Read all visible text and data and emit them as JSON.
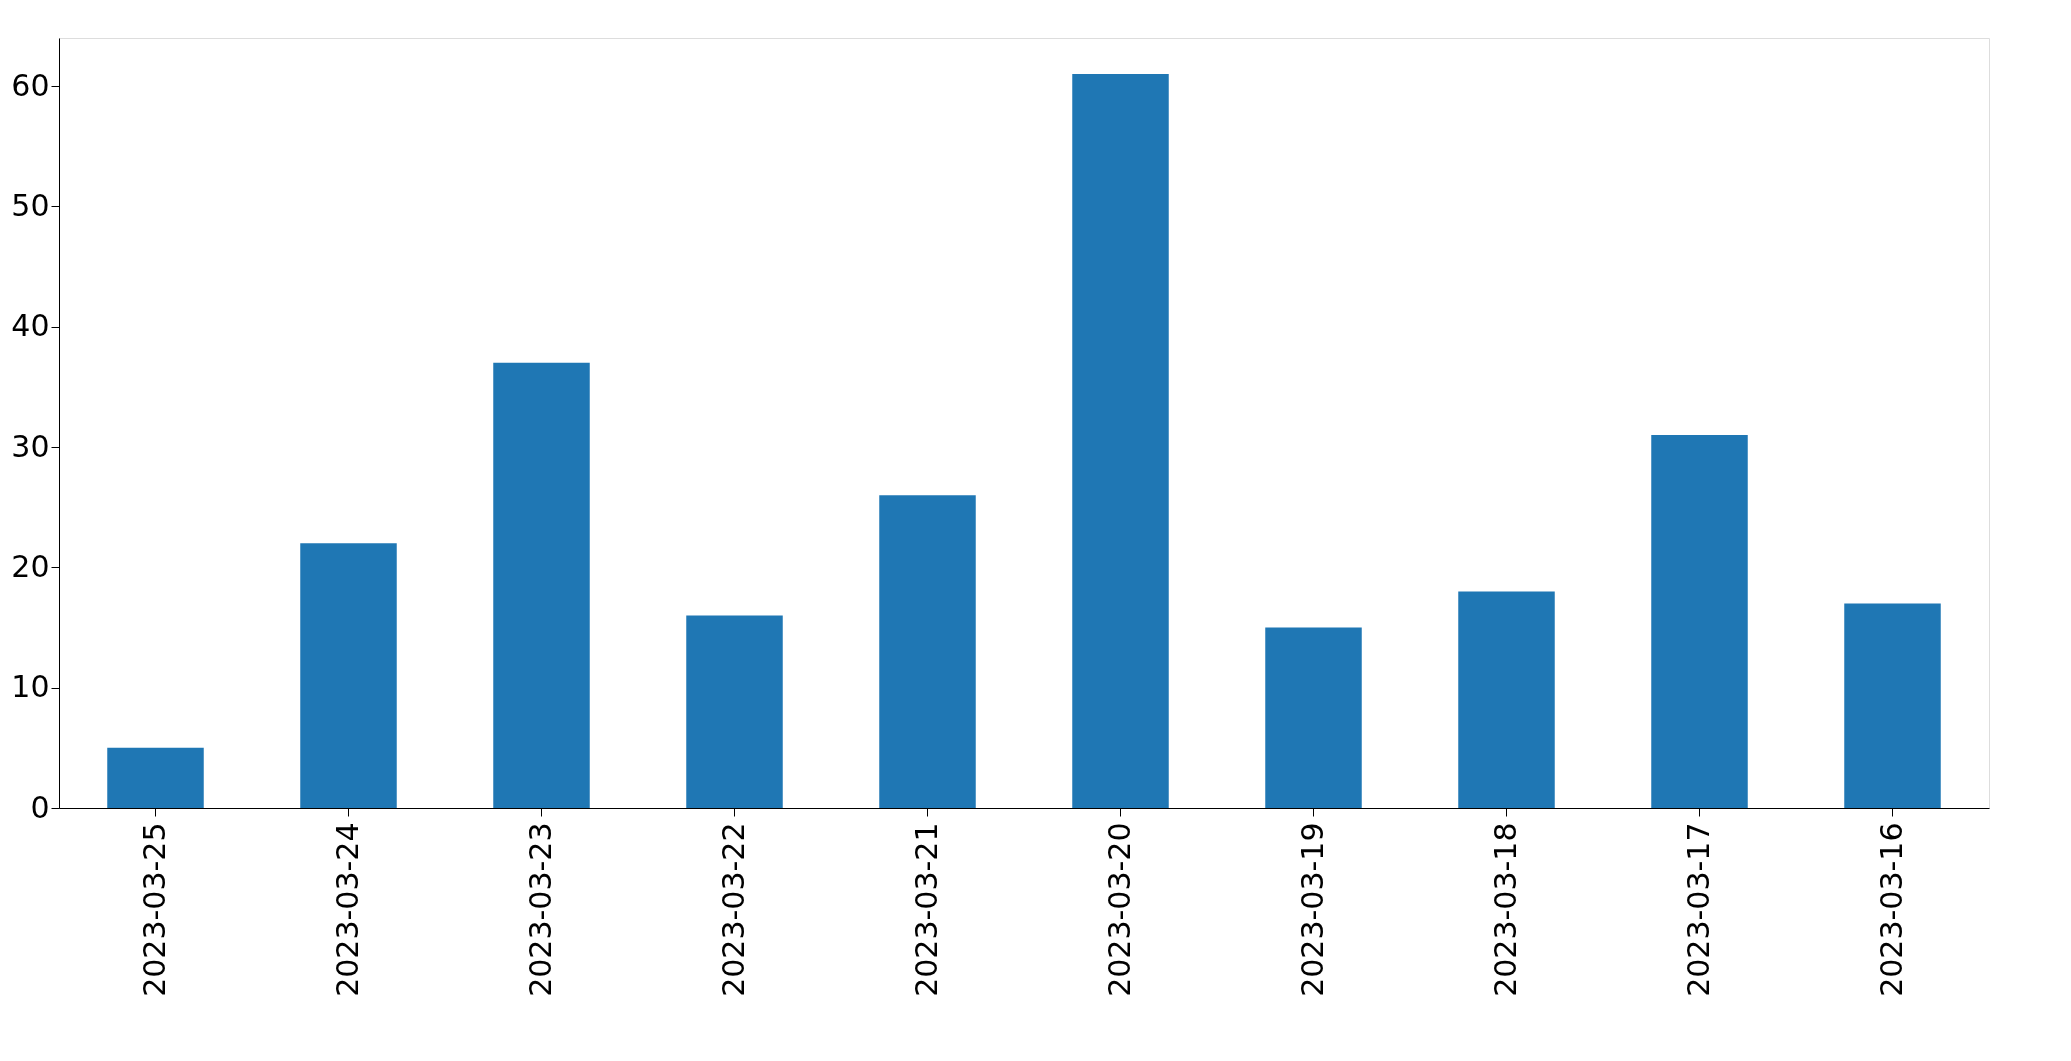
{
  "chart_data": {
    "type": "bar",
    "categories": [
      "2023-03-25",
      "2023-03-24",
      "2023-03-23",
      "2023-03-22",
      "2023-03-21",
      "2023-03-20",
      "2023-03-19",
      "2023-03-18",
      "2023-03-17",
      "2023-03-16"
    ],
    "values": [
      5,
      22,
      37,
      16,
      26,
      61,
      15,
      18,
      31,
      17
    ],
    "color": "#1f77b4",
    "ylim": [
      0,
      64
    ],
    "yticks": [
      0,
      10,
      20,
      30,
      40,
      50,
      60
    ],
    "grid": false
  }
}
